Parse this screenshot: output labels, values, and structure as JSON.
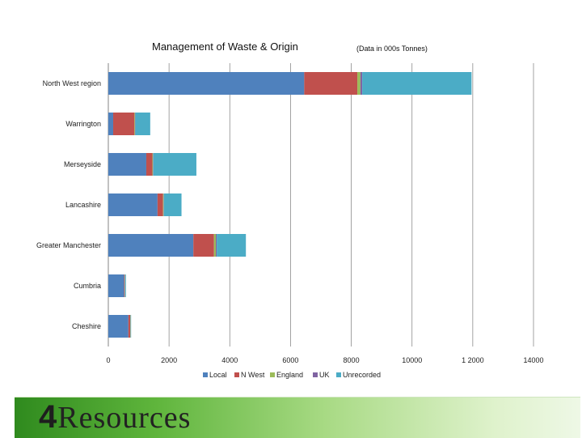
{
  "chart_data": {
    "type": "bar",
    "orientation": "horizontal",
    "stacked": true,
    "title": "Management of Waste & Origin",
    "subtitle": "(Data in 000s Tonnes)",
    "xlabel": "",
    "ylabel": "",
    "xlim": [
      0,
      14000
    ],
    "x_ticks": [
      "0",
      "2000",
      "4000",
      "6000",
      "8000",
      "10000",
      "1 2000",
      "14000"
    ],
    "x_tick_values": [
      0,
      2000,
      4000,
      6000,
      8000,
      10000,
      12000,
      14000
    ],
    "grid": "vertical",
    "legend_position": "bottom",
    "categories": [
      "North West region",
      "Warrington",
      "Merseyside",
      "Lancashire",
      "Greater Manchester",
      "Cumbria",
      "Cheshire"
    ],
    "series": [
      {
        "name": "Local",
        "color": "#4f81bd",
        "values": [
          6450,
          160,
          1250,
          1620,
          2800,
          520,
          660
        ]
      },
      {
        "name": "N West",
        "color": "#c0504d",
        "values": [
          1750,
          700,
          200,
          180,
          680,
          20,
          60
        ]
      },
      {
        "name": "England",
        "color": "#9bbb59",
        "values": [
          100,
          20,
          20,
          20,
          60,
          10,
          10
        ]
      },
      {
        "name": "UK",
        "color": "#8064a2",
        "values": [
          60,
          10,
          10,
          10,
          30,
          5,
          5
        ]
      },
      {
        "name": "Unrecorded",
        "color": "#4bacc6",
        "values": [
          3600,
          490,
          1420,
          580,
          960,
          25,
          15
        ]
      }
    ]
  },
  "footer": {
    "logo_number": "4",
    "logo_word": "Resources"
  }
}
